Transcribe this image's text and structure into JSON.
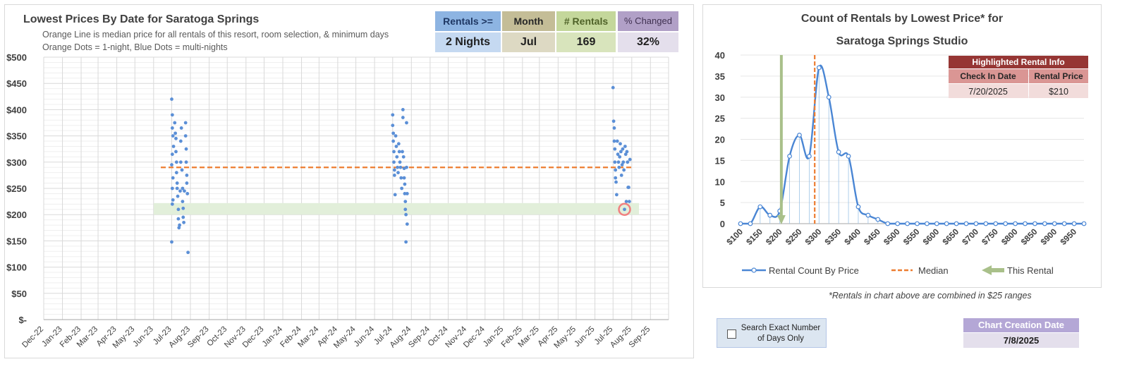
{
  "left": {
    "title": "Lowest Prices By Date for Saratoga Springs",
    "subtitle1": "Orange Line is median price for all rentals of this resort, room selection, & minimum days",
    "subtitle2": "Orange Dots = 1-night, Blue Dots = multi-nights",
    "stats": [
      {
        "label": "Rentals >=",
        "value": "2 Nights",
        "head_bg": "#8db4e2",
        "val_bg": "#c5d9f1",
        "head_color": "#1f3864"
      },
      {
        "label": "Month",
        "value": "Jul",
        "head_bg": "#c4bd97",
        "val_bg": "#ddd9c3",
        "head_color": "#262626"
      },
      {
        "label": "# Rentals",
        "value": "169",
        "head_bg": "#c4d79b",
        "val_bg": "#d8e4bc",
        "head_color": "#4f6228"
      },
      {
        "label": "% Changed",
        "value": "32%",
        "head_bg": "#b1a0c7",
        "val_bg": "#e4dfec",
        "head_color": "#403151"
      }
    ]
  },
  "right": {
    "title1": "Count of Rentals by Lowest Price* for",
    "title2": "Saratoga Springs Studio",
    "highlight": {
      "title": "Highlighted Rental Info",
      "col1": "Check In Date",
      "col2": "Rental Price",
      "date": "7/20/2025",
      "price": "$210"
    },
    "legend": [
      "Rental Count By Price",
      "Median",
      "This Rental"
    ],
    "footnote": "*Rentals in chart above are combined in $25 ranges"
  },
  "controls": {
    "search_label": "Search Exact Number of Days Only",
    "creation_label": "Chart Creation Date",
    "creation_date": "7/8/2025"
  },
  "colors": {
    "blue_dots": "#5b8fd6",
    "median": "#ed7d31",
    "highlight_band": "#e2efda",
    "this_rental": "#a9c08a",
    "line": "#4a86d4"
  },
  "chart_data": [
    {
      "type": "scatter",
      "title": "Lowest Prices By Date for Saratoga Springs",
      "x_categories": [
        "Dec-22",
        "Jan-23",
        "Feb-23",
        "Mar-23",
        "Apr-23",
        "May-23",
        "Jun-23",
        "Jul-23",
        "Aug-23",
        "Sep-23",
        "Oct-23",
        "Nov-23",
        "Dec-23",
        "Jan-24",
        "Feb-24",
        "Mar-24",
        "Apr-24",
        "May-24",
        "Jun-24",
        "Jul-24",
        "Aug-24",
        "Sep-24",
        "Oct-24",
        "Nov-24",
        "Dec-24",
        "Jan-25",
        "Feb-25",
        "Mar-25",
        "Apr-25",
        "May-25",
        "Jun-25",
        "Jul-25",
        "Aug-25",
        "Sep-25"
      ],
      "y_ticks": [
        "$-",
        "$50",
        "$100",
        "$150",
        "$200",
        "$250",
        "$300",
        "$350",
        "$400",
        "$450",
        "$500"
      ],
      "ylim": [
        0,
        500
      ],
      "median": 290,
      "highlight_band": [
        200,
        222
      ],
      "highlighted_point": {
        "date": "2025-07-20",
        "price": 210
      },
      "series": [
        {
          "name": "Blue Dots = multi-nights",
          "points": [
            [
              "2023-07-01",
              420
            ],
            [
              "2023-07-01",
              148
            ],
            [
              "2023-07-02",
              390
            ],
            [
              "2023-07-02",
              365
            ],
            [
              "2023-07-03",
              350
            ],
            [
              "2023-07-02",
              315
            ],
            [
              "2023-07-01",
              295
            ],
            [
              "2023-07-03",
              270
            ],
            [
              "2023-07-02",
              250
            ],
            [
              "2023-07-03",
              228
            ],
            [
              "2023-07-02",
              220
            ],
            [
              "2023-07-04",
              330
            ],
            [
              "2023-07-06",
              375
            ],
            [
              "2023-07-07",
              355
            ],
            [
              "2023-07-08",
              345
            ],
            [
              "2023-07-08",
              320
            ],
            [
              "2023-07-09",
              300
            ],
            [
              "2023-07-09",
              280
            ],
            [
              "2023-07-10",
              260
            ],
            [
              "2023-07-10",
              250
            ],
            [
              "2023-07-11",
              235
            ],
            [
              "2023-07-12",
              210
            ],
            [
              "2023-07-12",
              192
            ],
            [
              "2023-07-13",
              175
            ],
            [
              "2023-07-14",
              180
            ],
            [
              "2023-07-15",
              245
            ],
            [
              "2023-07-16",
              300
            ],
            [
              "2023-07-16",
              340
            ],
            [
              "2023-07-17",
              365
            ],
            [
              "2023-07-18",
              285
            ],
            [
              "2023-07-19",
              250
            ],
            [
              "2023-07-19",
              225
            ],
            [
              "2023-07-20",
              212
            ],
            [
              "2023-07-20",
              195
            ],
            [
              "2023-07-21",
              185
            ],
            [
              "2023-07-22",
              245
            ],
            [
              "2023-07-24",
              375
            ],
            [
              "2023-07-24",
              350
            ],
            [
              "2023-07-25",
              325
            ],
            [
              "2023-07-25",
              300
            ],
            [
              "2023-07-26",
              275
            ],
            [
              "2023-07-26",
              260
            ],
            [
              "2023-07-27",
              240
            ],
            [
              "2023-07-28",
              128
            ],
            [
              "2024-07-01",
              390
            ],
            [
              "2024-07-01",
              370
            ],
            [
              "2024-07-02",
              355
            ],
            [
              "2024-07-02",
              340
            ],
            [
              "2024-07-03",
              320
            ],
            [
              "2024-07-03",
              300
            ],
            [
              "2024-07-04",
              285
            ],
            [
              "2024-07-04",
              275
            ],
            [
              "2024-07-05",
              238
            ],
            [
              "2024-07-06",
              350
            ],
            [
              "2024-07-07",
              330
            ],
            [
              "2024-07-08",
              310
            ],
            [
              "2024-07-09",
              290
            ],
            [
              "2024-07-10",
              280
            ],
            [
              "2024-07-11",
              335
            ],
            [
              "2024-07-12",
              320
            ],
            [
              "2024-07-13",
              300
            ],
            [
              "2024-07-14",
              290
            ],
            [
              "2024-07-15",
              270
            ],
            [
              "2024-07-16",
              250
            ],
            [
              "2024-07-17",
              320
            ],
            [
              "2024-07-18",
              400
            ],
            [
              "2024-07-18",
              385
            ],
            [
              "2024-07-19",
              310
            ],
            [
              "2024-07-20",
              288
            ],
            [
              "2024-07-20",
              270
            ],
            [
              "2024-07-21",
              258
            ],
            [
              "2024-07-21",
              240
            ],
            [
              "2024-07-22",
              225
            ],
            [
              "2024-07-22",
              210
            ],
            [
              "2024-07-23",
              200
            ],
            [
              "2024-07-23",
              148
            ],
            [
              "2024-07-24",
              375
            ],
            [
              "2024-07-24",
              290
            ],
            [
              "2024-07-25",
              240
            ],
            [
              "2024-07-25",
              182
            ],
            [
              "2025-07-01",
              442
            ],
            [
              "2025-07-02",
              378
            ],
            [
              "2025-07-03",
              365
            ],
            [
              "2025-07-03",
              340
            ],
            [
              "2025-07-04",
              325
            ],
            [
              "2025-07-04",
              300
            ],
            [
              "2025-07-05",
              285
            ],
            [
              "2025-07-05",
              270
            ],
            [
              "2025-07-06",
              262
            ],
            [
              "2025-07-07",
              238
            ],
            [
              "2025-07-08",
              340
            ],
            [
              "2025-07-09",
              315
            ],
            [
              "2025-07-10",
              300
            ],
            [
              "2025-07-11",
              290
            ],
            [
              "2025-07-12",
              310
            ],
            [
              "2025-07-13",
              335
            ],
            [
              "2025-07-14",
              320
            ],
            [
              "2025-07-15",
              275
            ],
            [
              "2025-07-16",
              295
            ],
            [
              "2025-07-17",
              325
            ],
            [
              "2025-07-18",
              300
            ],
            [
              "2025-07-19",
              285
            ],
            [
              "2025-07-20",
              210
            ],
            [
              "2025-07-21",
              330
            ],
            [
              "2025-07-22",
              315
            ],
            [
              "2025-07-23",
              225
            ],
            [
              "2025-07-24",
              320
            ],
            [
              "2025-07-25",
              300
            ],
            [
              "2025-07-26",
              252
            ],
            [
              "2025-07-27",
              252
            ],
            [
              "2025-07-28",
              225
            ],
            [
              "2025-07-29",
              305
            ]
          ]
        }
      ]
    },
    {
      "type": "line",
      "title": "Count of Rentals by Lowest Price* for Saratoga Springs Studio",
      "x": [
        100,
        125,
        150,
        175,
        200,
        225,
        250,
        275,
        300,
        325,
        350,
        375,
        400,
        425,
        450,
        475,
        500,
        525,
        550,
        575,
        600,
        625,
        650,
        675,
        700,
        725,
        750,
        775,
        800,
        825,
        850,
        875,
        900,
        925,
        950,
        975
      ],
      "x_tick_labels": [
        "$100",
        "$150",
        "$200",
        "$250",
        "$300",
        "$350",
        "$400",
        "$450",
        "$500",
        "$550",
        "$600",
        "$650",
        "$700",
        "$750",
        "$800",
        "$850",
        "$900",
        "$950"
      ],
      "ylim": [
        0,
        40
      ],
      "y_ticks": [
        0,
        5,
        10,
        15,
        20,
        25,
        30,
        35,
        40
      ],
      "median": 290,
      "this_rental": 210,
      "series": [
        {
          "name": "Rental Count By Price",
          "values": [
            0,
            0,
            4,
            2,
            3,
            16,
            21,
            16,
            37,
            30,
            17,
            16,
            4,
            2,
            1,
            0,
            0,
            0,
            0,
            0,
            0,
            0,
            0,
            0,
            0,
            0,
            0,
            0,
            0,
            0,
            0,
            0,
            0,
            0,
            0,
            0
          ]
        }
      ]
    }
  ]
}
